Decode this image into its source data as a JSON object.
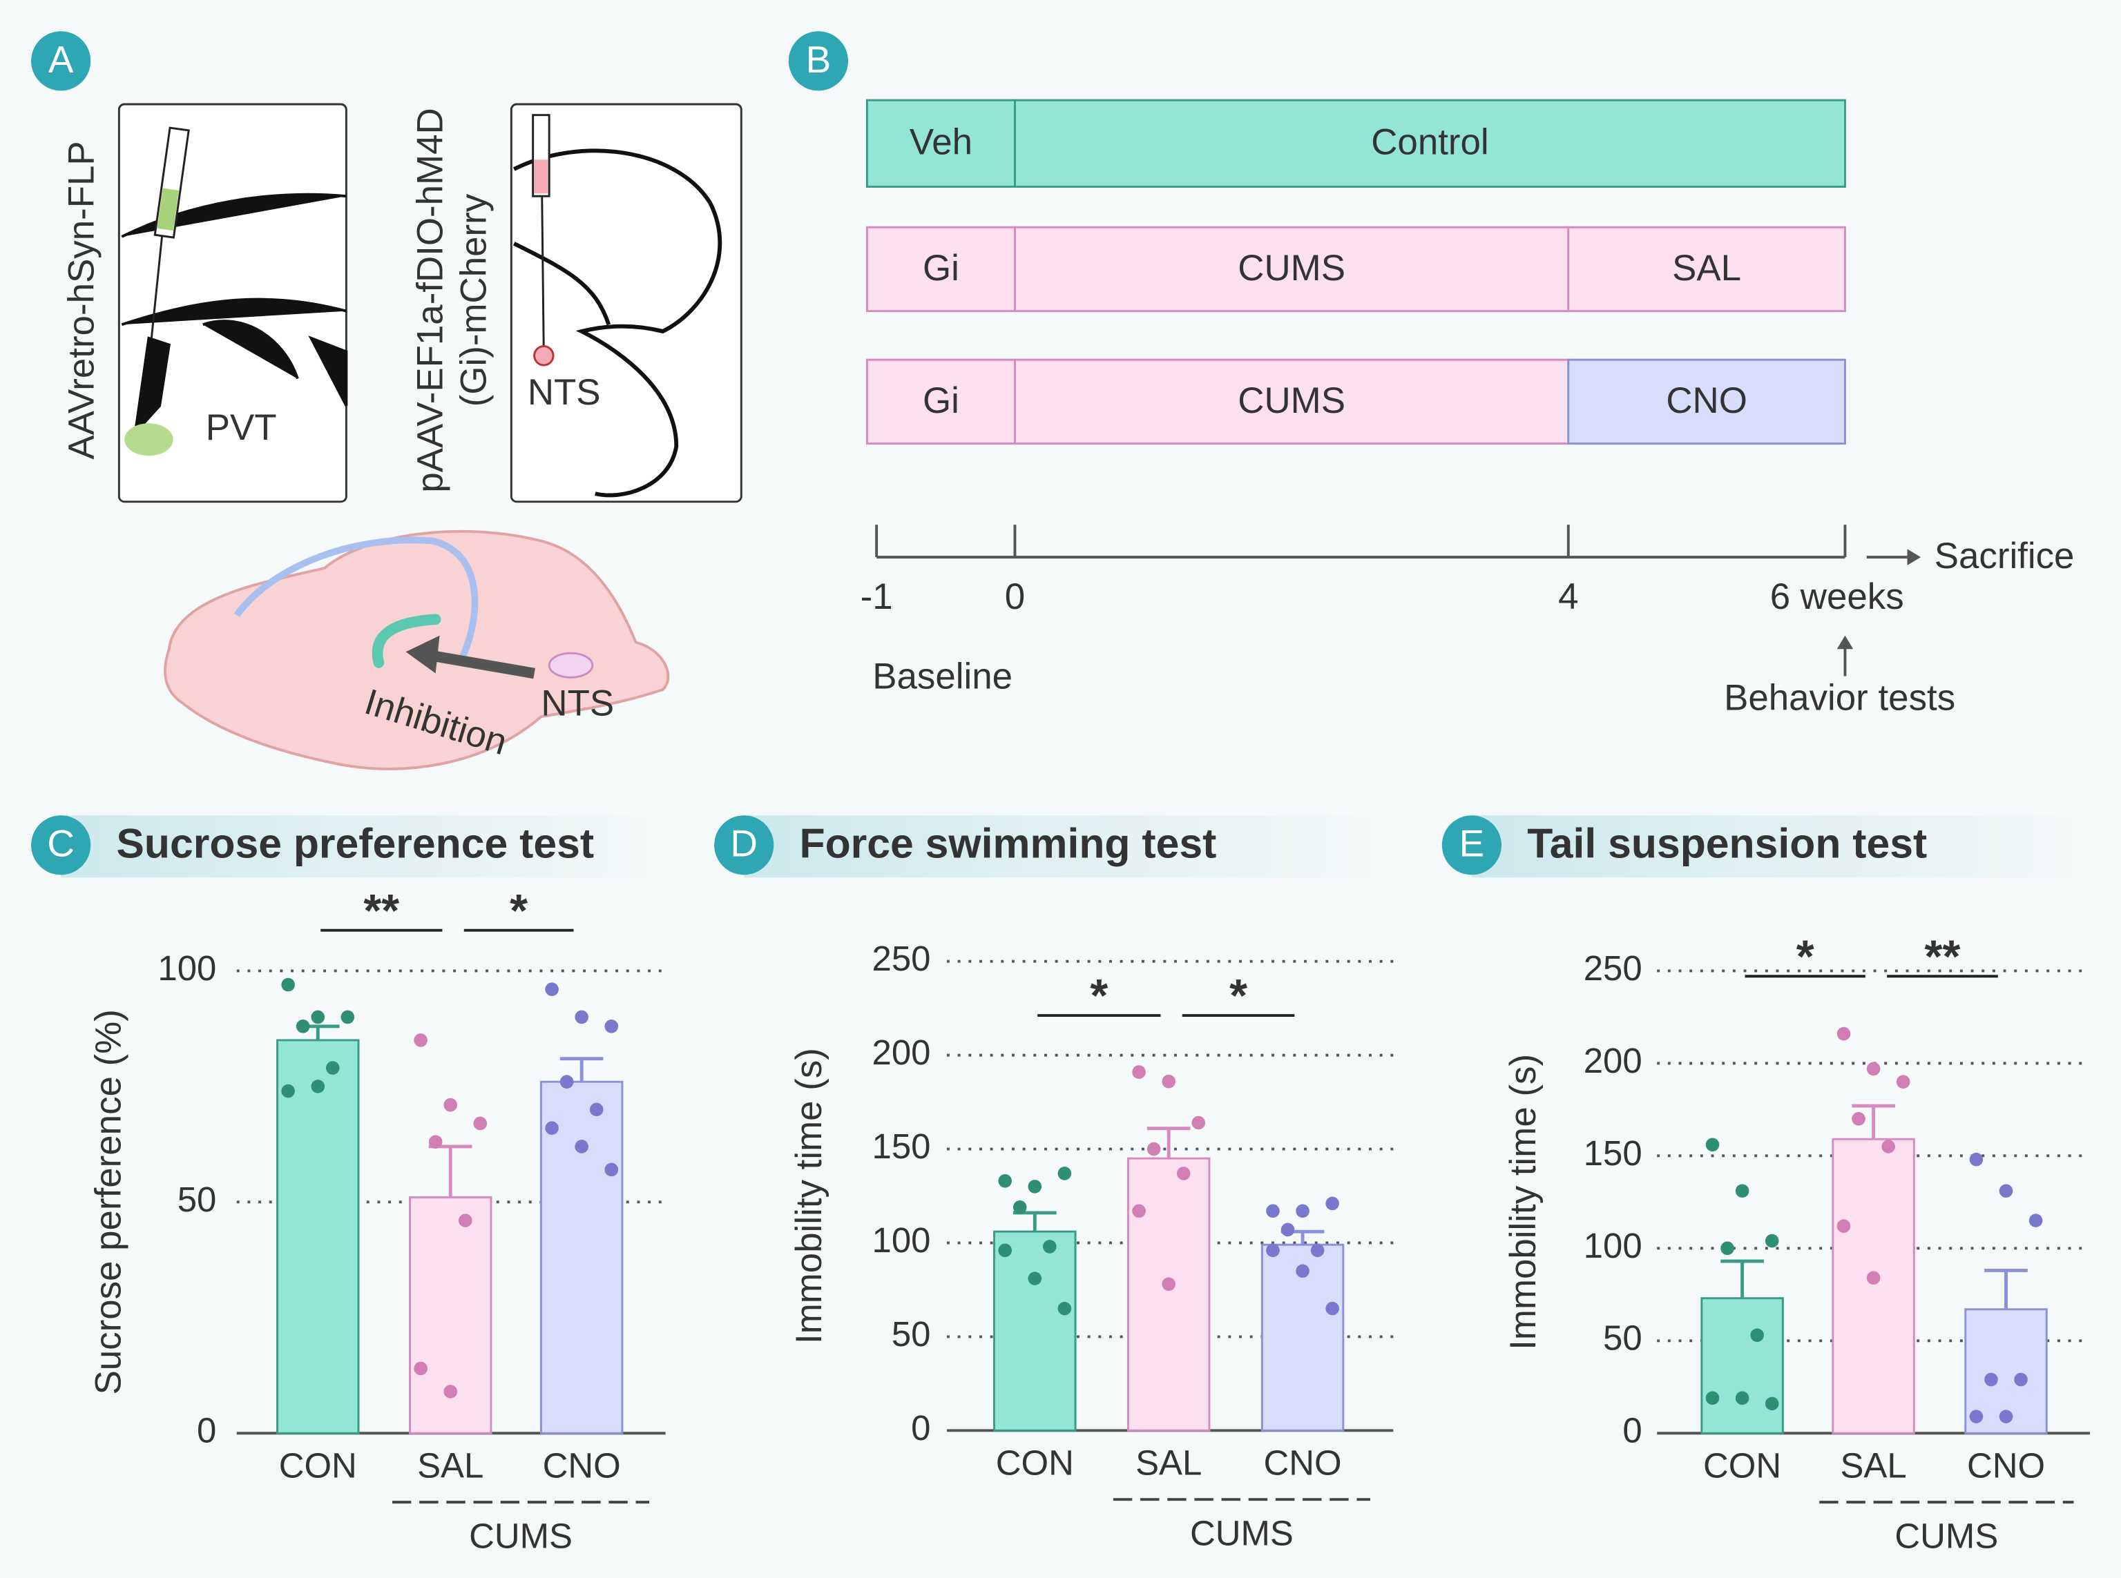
{
  "panel_a": {
    "label": "A",
    "left_virus": "AAVretro-hSyn-FLP",
    "right_virus": [
      "pAAV-EF1a-fDIO-hM4D",
      "(Gi)-mCherry"
    ],
    "left_region": "PVT",
    "right_region": "NTS",
    "arrow_label": "Inhibition",
    "source_label": "NTS"
  },
  "panel_b": {
    "label": "B",
    "rows": [
      {
        "segments": [
          "Veh",
          "Control"
        ],
        "colors": [
          "#93e6d5",
          "#93e6d5"
        ]
      },
      {
        "segments": [
          "Gi",
          "CUMS",
          "SAL"
        ],
        "colors": [
          "#fde0f0",
          "#fde0f0",
          "#fde0f0"
        ]
      },
      {
        "segments": [
          "Gi",
          "CUMS",
          "CNO"
        ],
        "colors": [
          "#fde0f0",
          "#fde0f0",
          "#d8ddfb"
        ]
      }
    ],
    "xlim": [
      -1,
      6
    ],
    "ticks": [
      -1,
      0,
      4,
      {
        "value": 6,
        "label": "6 weeks"
      }
    ],
    "start_label": "Baseline",
    "end_label": "Sacrifice",
    "test_label": "Behavior tests"
  },
  "chart_data": [
    {
      "type": "bar",
      "panel": "C",
      "title": "Sucrose preference test",
      "y_label": "Sucrose perference (%)",
      "categories": [
        "CON",
        "SAL",
        "CNO"
      ],
      "group": "CUMS",
      "values": [
        85,
        51,
        76
      ],
      "errors": [
        3,
        11,
        5
      ],
      "points": [
        [
          97,
          90,
          90,
          88,
          79,
          74,
          75
        ],
        [
          85,
          71,
          67,
          63,
          46,
          14,
          9
        ],
        [
          96,
          90,
          88,
          76,
          70,
          66,
          62,
          57
        ]
      ],
      "colors": [
        "#93e6d5",
        "#fde0f0",
        "#d8ddfb"
      ],
      "edge_colors": [
        "#3a9c86",
        "#d58bc0",
        "#8b91d8"
      ],
      "point_colors": [
        "#2f8f74",
        "#d07eb3",
        "#7a78cc"
      ],
      "ylim": [
        0,
        100
      ],
      "yticks": [
        0,
        50,
        100
      ],
      "grid": true,
      "annotations": [
        "**",
        "*"
      ]
    },
    {
      "type": "bar",
      "panel": "D",
      "title": "Force swimming test",
      "y_label": "Immobility time (s)",
      "categories": [
        "CON",
        "SAL",
        "CNO"
      ],
      "group": "CUMS",
      "values": [
        106,
        145,
        99
      ],
      "errors": [
        10,
        16,
        7
      ],
      "points": [
        [
          133,
          130,
          137,
          119,
          98,
          96,
          81,
          65
        ],
        [
          191,
          186,
          164,
          150,
          137,
          117,
          78
        ],
        [
          117,
          117,
          121,
          107,
          96,
          96,
          85,
          65
        ]
      ],
      "colors": [
        "#93e6d5",
        "#fde0f0",
        "#d8ddfb"
      ],
      "edge_colors": [
        "#3a9c86",
        "#d58bc0",
        "#8b91d8"
      ],
      "point_colors": [
        "#2f8f74",
        "#d07eb3",
        "#7a78cc"
      ],
      "ylim": [
        0,
        250
      ],
      "yticks": [
        0,
        50,
        100,
        150,
        200,
        250
      ],
      "grid": true,
      "annotations": [
        "*",
        "*"
      ]
    },
    {
      "type": "bar",
      "panel": "E",
      "title": "Tail suspension test",
      "y_label": "Immobility time (s)",
      "categories": [
        "CON",
        "SAL",
        "CNO"
      ],
      "group": "CUMS",
      "values": [
        73,
        159,
        67
      ],
      "errors": [
        20,
        18,
        21
      ],
      "points": [
        [
          156,
          131,
          104,
          100,
          53,
          19,
          19,
          16
        ],
        [
          216,
          197,
          190,
          170,
          155,
          112,
          84
        ],
        [
          148,
          131,
          115,
          29,
          29,
          9,
          9
        ]
      ],
      "colors": [
        "#93e6d5",
        "#fde0f0",
        "#d8ddfb"
      ],
      "edge_colors": [
        "#3a9c86",
        "#d58bc0",
        "#8b91d8"
      ],
      "point_colors": [
        "#2f8f74",
        "#d07eb3",
        "#7a78cc"
      ],
      "ylim": [
        0,
        250
      ],
      "yticks": [
        0,
        50,
        100,
        150,
        200,
        250
      ],
      "grid": true,
      "annotations": [
        "*",
        "**"
      ]
    }
  ]
}
